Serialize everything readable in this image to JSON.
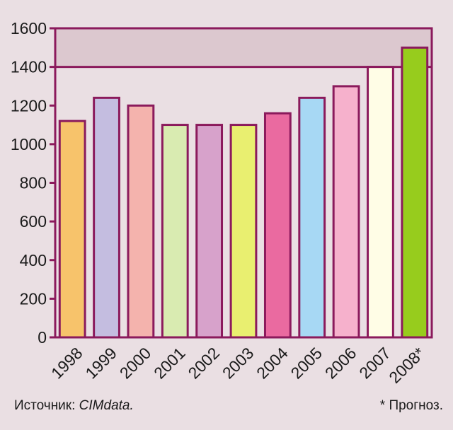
{
  "chart_data": {
    "type": "bar",
    "categories": [
      "1998",
      "1999",
      "2000",
      "2001",
      "2002",
      "2003",
      "2004",
      "2005",
      "2006",
      "2007",
      "2008*"
    ],
    "values": [
      1120,
      1240,
      1200,
      1100,
      1100,
      1100,
      1160,
      1240,
      1300,
      1400,
      1500
    ],
    "colors": [
      "#f7c36b",
      "#c4bde0",
      "#f4b3ad",
      "#d9ebb1",
      "#d7a2cb",
      "#e9ef70",
      "#ea6aa0",
      "#a7d8f4",
      "#f6b1cc",
      "#fffde6",
      "#97cc1d"
    ],
    "ylim": [
      0,
      1600
    ],
    "yticks": [
      0,
      200,
      400,
      600,
      800,
      1000,
      1200,
      1400,
      1600
    ],
    "highlight_band": [
      1400,
      1600
    ],
    "grid": false,
    "axis_color": "#8b1a5c",
    "band_color": "#dcc8cf",
    "plot_bg": "#eadfe3",
    "title": "",
    "xlabel": "",
    "ylabel": ""
  },
  "footer": {
    "source_prefix": "Источник: ",
    "source_name": "CIMdata.",
    "note": "* Прогноз."
  }
}
